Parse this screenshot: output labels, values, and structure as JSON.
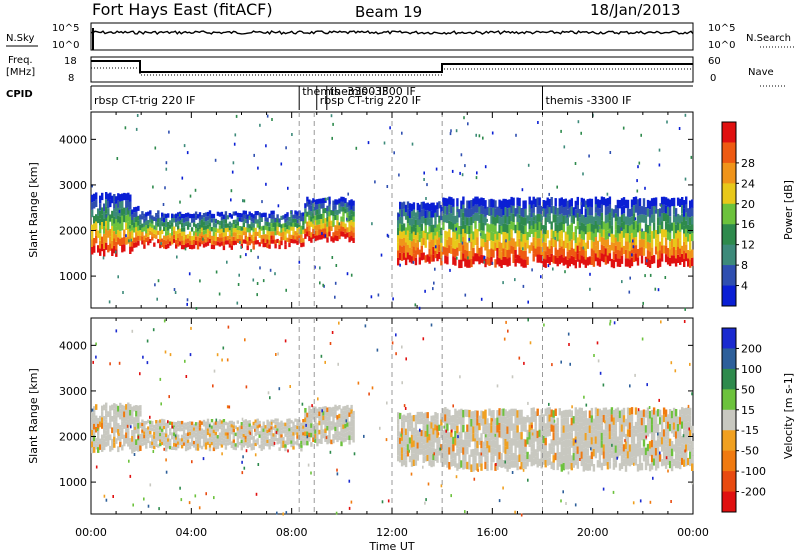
{
  "header": {
    "radar": "Fort Hays East (fitACF)",
    "beam": "Beam 19",
    "date": "18/Jan/2013"
  },
  "sky_panel": {
    "left_label": "N.Sky",
    "left_ticks": [
      "10^5",
      "10^0"
    ],
    "right_ticks": [
      "10^5",
      "10^0"
    ],
    "right_label": "N.Search"
  },
  "freq_panel": {
    "left_label_1": "Freq.",
    "left_label_2": "[MHz]",
    "left_ticks": [
      "18",
      "8"
    ],
    "right_ticks": [
      "60",
      "0"
    ],
    "right_label": "Nave"
  },
  "cpid": {
    "label": "CPID",
    "programs": [
      {
        "name": "rbsp CT-trig 220 IF",
        "start_hour": 0
      },
      {
        "name": "themis -3300 IF",
        "start_hour": 8.3
      },
      {
        "name": "rbsp CT-trig 220 IF",
        "start_hour": 9.0
      },
      {
        "name": "themis -3300 IF",
        "start_hour": 9.4
      },
      {
        "name": "themis -3300 IF",
        "start_hour": 18.0
      }
    ],
    "dashed_hours": [
      8.3,
      8.9,
      12.0,
      14.0,
      18.0
    ]
  },
  "chart_data": [
    {
      "type": "heatmap",
      "title": "Power",
      "xlabel": "",
      "ylabel": "Slant Range [km]",
      "x_hours": [
        0,
        24
      ],
      "ylim": [
        300,
        4600
      ],
      "yticks": [
        "1000",
        "2000",
        "3000",
        "4000"
      ],
      "colorbar": {
        "label": "Power [dB]",
        "ticks": [
          "4",
          "8",
          "12",
          "16",
          "20",
          "24",
          "28"
        ],
        "colors": [
          "#0a1fd4",
          "#2f4fb0",
          "#3d8a7a",
          "#2e8a4c",
          "#6cc23c",
          "#e8c81a",
          "#f0941a",
          "#ee5a12",
          "#e01010"
        ]
      },
      "segments": [
        {
          "h0": 0.0,
          "h1": 1.6,
          "low": 1500,
          "high": 2800
        },
        {
          "h0": 1.6,
          "h1": 2.0,
          "low": 1600,
          "high": 2500
        },
        {
          "h0": 2.0,
          "h1": 8.5,
          "low": 1650,
          "high": 2400
        },
        {
          "h0": 8.5,
          "h1": 10.5,
          "low": 1800,
          "high": 2700
        },
        {
          "h0": 12.2,
          "h1": 14.0,
          "low": 1300,
          "high": 2600
        },
        {
          "h0": 14.0,
          "h1": 24.0,
          "low": 1250,
          "high": 2700
        }
      ]
    },
    {
      "type": "heatmap",
      "title": "Velocity",
      "xlabel": "Time UT",
      "ylabel": "Slant Range [km]",
      "x_hours": [
        0,
        24
      ],
      "ylim": [
        300,
        4600
      ],
      "yticks": [
        "1000",
        "2000",
        "3000",
        "4000"
      ],
      "xticks": [
        "00:00",
        "04:00",
        "08:00",
        "12:00",
        "16:00",
        "20:00",
        "00:00"
      ],
      "colorbar": {
        "label": "Velocity [m s-1]",
        "ticks": [
          "200",
          "100",
          "50",
          "15",
          "-15",
          "-50",
          "-100",
          "-200"
        ],
        "colors": [
          "#1a2ad0",
          "#2d5f9a",
          "#2e8a4c",
          "#6cc23c",
          "#c8c8c0",
          "#f0a020",
          "#f07a10",
          "#e84a10",
          "#e01010"
        ]
      },
      "segments": [
        {
          "h0": 0.0,
          "h1": 2.0,
          "low": 1700,
          "high": 2700
        },
        {
          "h0": 2.0,
          "h1": 8.5,
          "low": 1750,
          "high": 2350
        },
        {
          "h0": 8.5,
          "h1": 10.5,
          "low": 1850,
          "high": 2650
        },
        {
          "h0": 12.2,
          "h1": 14.0,
          "low": 1400,
          "high": 2500
        },
        {
          "h0": 14.0,
          "h1": 24.0,
          "low": 1300,
          "high": 2600
        }
      ]
    }
  ]
}
